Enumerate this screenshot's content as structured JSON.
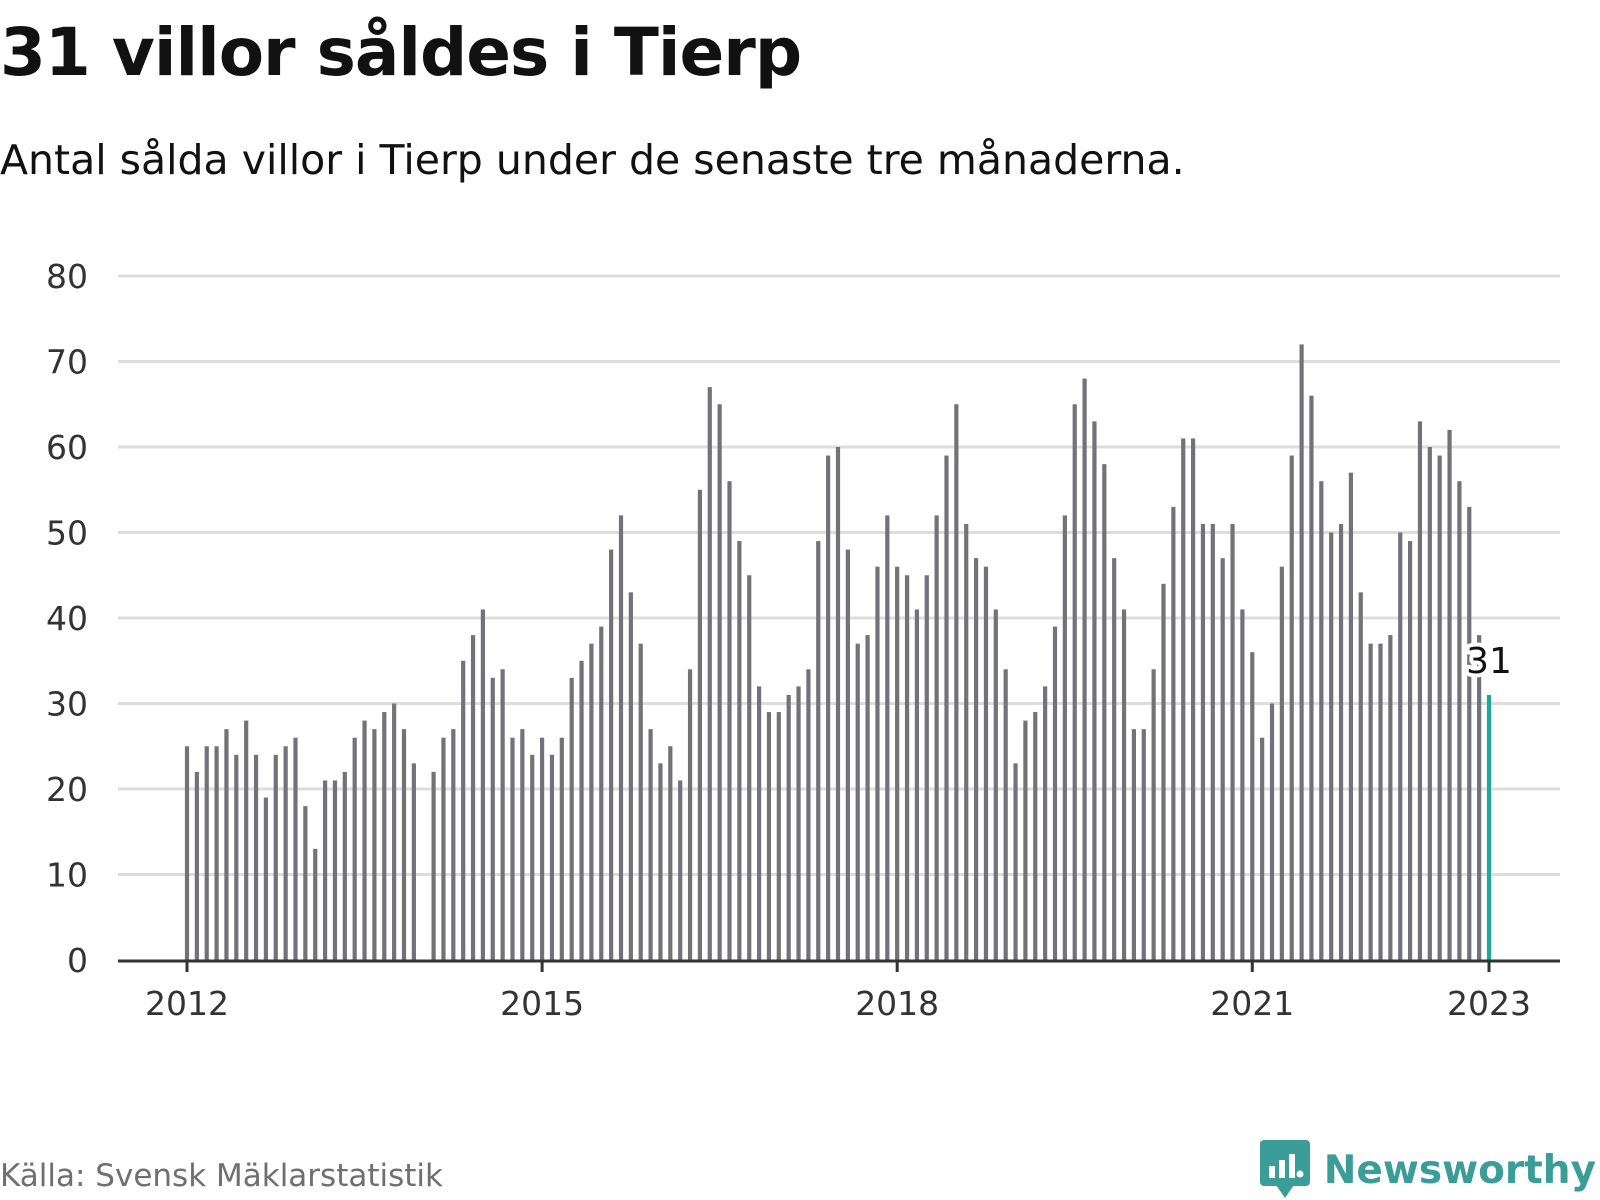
{
  "header": {
    "title": "31 villor såldes i Tierp",
    "subtitle": "Antal sålda villor i Tierp under de senaste tre månaderna."
  },
  "footer": {
    "source": "Källa: Svensk Mäklarstatistik",
    "brand": "Newsworthy",
    "brand_icon": "bar-chart-speech-bubble-icon"
  },
  "colors": {
    "bar": "#737278",
    "highlight": "#1ea79b",
    "grid": "#dddddd",
    "axis": "#333333",
    "brand": "#3a9d98"
  },
  "chart_data": {
    "type": "bar",
    "title": "31 villor såldes i Tierp",
    "subtitle": "Antal sålda villor i Tierp under de senaste tre månaderna.",
    "xlabel": "",
    "ylabel": "",
    "ylim": [
      0,
      80
    ],
    "yticks": [
      0,
      10,
      20,
      30,
      40,
      50,
      60,
      70,
      80
    ],
    "xticks": [
      "2012",
      "2015",
      "2018",
      "2021",
      "2023"
    ],
    "grid": true,
    "x_start": "2012-01",
    "x_end": "2023-01",
    "series": [
      {
        "values": [
          25,
          22,
          25,
          25,
          27,
          24,
          28,
          24,
          19,
          24,
          25,
          26,
          18,
          13,
          21,
          21,
          22,
          26,
          28,
          27,
          29,
          30,
          27,
          23,
          null,
          22,
          26,
          27,
          35,
          38,
          41,
          33,
          34,
          26,
          27,
          24,
          26,
          24,
          26,
          33,
          35,
          37,
          39,
          48,
          52,
          43,
          37,
          27,
          23,
          25,
          21,
          34,
          55,
          67,
          65,
          56,
          49,
          45,
          32,
          29,
          29,
          31,
          32,
          34,
          49,
          59,
          60,
          48,
          37,
          38,
          46,
          52,
          46,
          45,
          41,
          45,
          52,
          59,
          65,
          51,
          47,
          46,
          41,
          34,
          23,
          28,
          29,
          32,
          39,
          52,
          65,
          68,
          63,
          58,
          47,
          41,
          27,
          27,
          34,
          44,
          53,
          61,
          61,
          51,
          51,
          47,
          51,
          41,
          36,
          26,
          30,
          46,
          59,
          72,
          66,
          56,
          50,
          51,
          57,
          43,
          37,
          37,
          38,
          50,
          49,
          63,
          60,
          59,
          62,
          56,
          53,
          38,
          31
        ]
      }
    ],
    "highlight_index": 132,
    "annotation": "31"
  }
}
